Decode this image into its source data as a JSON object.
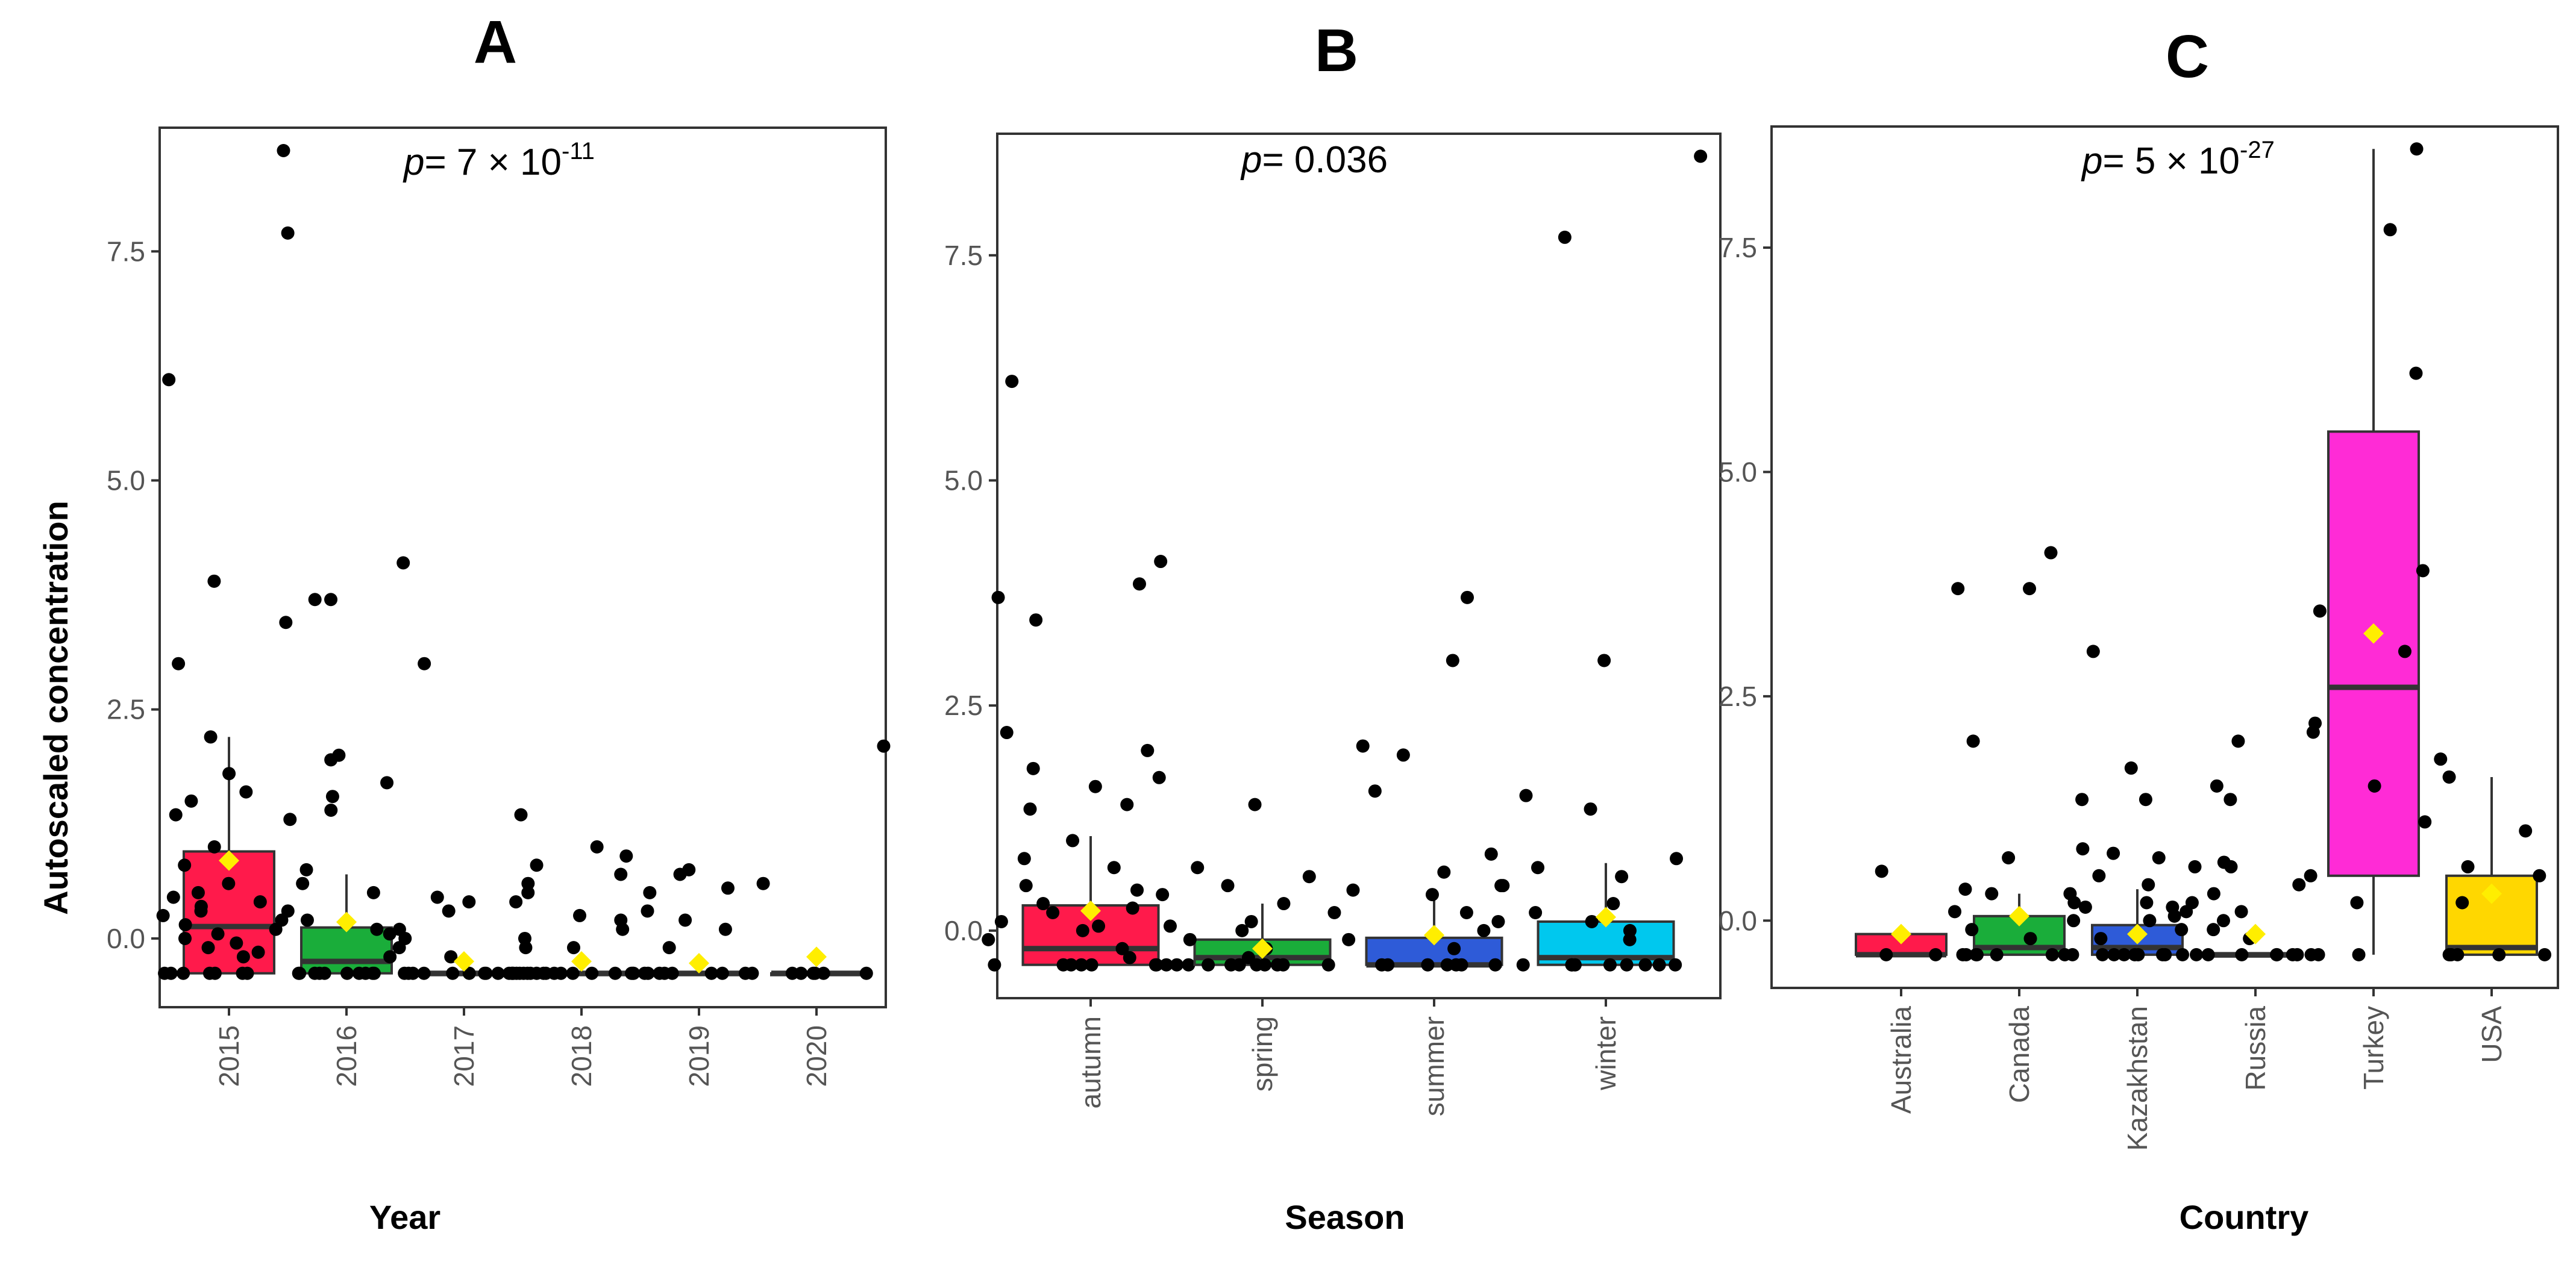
{
  "figure": {
    "ylabel": "Autoscaled concentration"
  },
  "chart_data": [
    {
      "type": "box",
      "panel": "A",
      "xlabel": "Year",
      "p_label": "p",
      "p_value_text": "= 7 × 10",
      "p_exponent": "-11",
      "ylim": [
        -0.75,
        8.85
      ],
      "yticks": [
        0.0,
        2.5,
        5.0,
        7.5
      ],
      "ytick_labels": [
        "0.0",
        "2.5",
        "5.0",
        "7.5"
      ],
      "categories": [
        "2015",
        "2016",
        "2017",
        "2018",
        "2019",
        "2020"
      ],
      "boxes": [
        {
          "q1": -0.38,
          "median": 0.13,
          "q3": 0.95,
          "whisker_low": -0.38,
          "whisker_high": 2.2,
          "mean": 0.85,
          "color": "#ff1a4b"
        },
        {
          "q1": -0.38,
          "median": -0.25,
          "q3": 0.12,
          "whisker_low": -0.38,
          "whisker_high": 0.7,
          "mean": 0.18,
          "color": "#1aad3a"
        },
        {
          "q1": -0.38,
          "median": -0.38,
          "q3": -0.38,
          "whisker_low": -0.38,
          "whisker_high": -0.38,
          "mean": -0.25,
          "color": "#2e5bd8"
        },
        {
          "q1": -0.38,
          "median": -0.38,
          "q3": -0.38,
          "whisker_low": -0.38,
          "whisker_high": -0.38,
          "mean": -0.25,
          "color": "#00c8ee"
        },
        {
          "q1": -0.38,
          "median": -0.38,
          "q3": -0.38,
          "whisker_low": -0.38,
          "whisker_high": -0.38,
          "mean": -0.27,
          "color": "#ff2bd6"
        },
        {
          "q1": -0.38,
          "median": -0.38,
          "q3": -0.38,
          "whisker_low": -0.38,
          "whisker_high": -0.38,
          "mean": -0.2,
          "color": "#ffd700"
        }
      ],
      "points": [
        [
          8.6,
          7.7,
          6.1,
          3.9,
          3.45,
          3.0,
          2.2,
          1.8,
          1.6,
          1.5,
          1.35,
          1.3,
          1.0,
          0.8,
          0.6,
          0.5,
          0.45,
          0.4,
          0.35,
          0.3,
          0.25,
          0.2,
          0.15,
          0.1,
          0.05,
          0.0,
          -0.05,
          -0.1,
          -0.15,
          -0.2,
          -0.38,
          -0.38,
          -0.38,
          -0.38,
          -0.38,
          -0.38,
          -0.38,
          -0.38
        ],
        [
          4.1,
          3.7,
          3.7,
          2.0,
          1.95,
          1.7,
          1.55,
          1.4,
          0.75,
          0.6,
          0.5,
          0.3,
          0.2,
          0.1,
          0.05,
          0.0,
          -0.1,
          -0.2,
          -0.38,
          -0.38,
          -0.38,
          -0.38,
          -0.38,
          -0.38,
          -0.38,
          -0.38,
          -0.38,
          -0.38
        ],
        [
          3.0,
          1.35,
          0.5,
          0.45,
          0.4,
          0.3,
          0.1,
          -0.1,
          -0.2,
          -0.38,
          -0.38,
          -0.38,
          -0.38,
          -0.38,
          -0.38,
          -0.38,
          -0.38,
          -0.38,
          -0.38,
          -0.38
        ],
        [
          1.0,
          0.9,
          0.8,
          0.7,
          0.6,
          0.5,
          0.4,
          0.3,
          0.25,
          0.2,
          0.1,
          0.0,
          -0.1,
          -0.38,
          -0.38,
          -0.38,
          -0.38,
          -0.38,
          -0.38,
          -0.38,
          -0.38,
          -0.38,
          -0.38,
          -0.38,
          -0.38,
          -0.38,
          -0.38,
          -0.38
        ],
        [
          0.75,
          0.7,
          0.6,
          0.55,
          0.2,
          0.1,
          -0.1,
          -0.38,
          -0.38,
          -0.38,
          -0.38,
          -0.38,
          -0.38,
          -0.38,
          -0.38,
          -0.38,
          -0.38,
          -0.38
        ],
        [
          2.1,
          -0.38,
          -0.38,
          -0.38,
          -0.38,
          -0.38,
          -0.38
        ]
      ]
    },
    {
      "type": "box",
      "panel": "B",
      "xlabel": "Season",
      "p_label": "p",
      "p_value_text": "= 0.036",
      "p_exponent": "",
      "ylim": [
        -0.75,
        8.85
      ],
      "yticks": [
        0.0,
        2.5,
        5.0,
        7.5
      ],
      "ytick_labels": [
        "0.0",
        "2.5",
        "5.0",
        "7.5"
      ],
      "categories": [
        "autumn",
        "spring",
        "summer",
        "winter"
      ],
      "boxes": [
        {
          "q1": -0.38,
          "median": -0.2,
          "q3": 0.28,
          "whisker_low": -0.38,
          "whisker_high": 1.05,
          "mean": 0.22,
          "color": "#ff1a4b"
        },
        {
          "q1": -0.38,
          "median": -0.3,
          "q3": -0.1,
          "whisker_low": -0.38,
          "whisker_high": 0.3,
          "mean": -0.2,
          "color": "#1aad3a"
        },
        {
          "q1": -0.38,
          "median": -0.38,
          "q3": -0.08,
          "whisker_low": -0.38,
          "whisker_high": 0.35,
          "mean": -0.05,
          "color": "#2e5bd8"
        },
        {
          "q1": -0.38,
          "median": -0.3,
          "q3": 0.1,
          "whisker_low": -0.38,
          "whisker_high": 0.75,
          "mean": 0.15,
          "color": "#00c8ee"
        }
      ],
      "points": [
        [
          6.1,
          4.1,
          3.85,
          3.7,
          3.45,
          2.2,
          2.0,
          1.8,
          1.6,
          1.4,
          1.35,
          1.0,
          0.8,
          0.7,
          0.5,
          0.45,
          0.4,
          0.3,
          0.25,
          0.2,
          0.1,
          0.05,
          0.0,
          -0.1,
          -0.2,
          -0.3,
          -0.38,
          -0.38,
          -0.38,
          -0.38,
          -0.38,
          -0.38,
          -0.38,
          -0.38
        ],
        [
          1.7,
          1.4,
          0.7,
          0.6,
          0.5,
          0.45,
          0.3,
          0.2,
          0.1,
          0.05,
          0.0,
          -0.1,
          -0.2,
          -0.3,
          -0.38,
          -0.38,
          -0.38,
          -0.38,
          -0.38,
          -0.38,
          -0.38,
          -0.38,
          -0.38,
          -0.38
        ],
        [
          3.7,
          3.0,
          2.05,
          1.95,
          1.55,
          0.85,
          0.65,
          0.5,
          0.4,
          0.2,
          0.1,
          0.0,
          -0.1,
          -0.2,
          -0.38,
          -0.38,
          -0.38,
          -0.38,
          -0.38,
          -0.38,
          -0.38,
          -0.38
        ],
        [
          8.6,
          7.7,
          3.0,
          1.5,
          1.35,
          0.8,
          0.7,
          0.6,
          0.5,
          0.3,
          0.2,
          0.1,
          0.0,
          -0.1,
          -0.38,
          -0.38,
          -0.38,
          -0.38,
          -0.38,
          -0.38,
          -0.38,
          -0.38
        ]
      ]
    },
    {
      "type": "box",
      "panel": "C",
      "xlabel": "Country",
      "p_label": "p",
      "p_value_text": "= 5 × 10",
      "p_exponent": "-27",
      "ylim": [
        -0.75,
        8.85
      ],
      "yticks": [
        0.0,
        2.5,
        5.0,
        7.5
      ],
      "ytick_labels": [
        "0.0",
        "2.5",
        "5.0",
        "7.5"
      ],
      "categories": [
        "Australia",
        "Canada",
        "Kazakhstan",
        "Russia",
        "Turkey",
        "USA"
      ],
      "boxes": [
        {
          "q1": -0.38,
          "median": -0.38,
          "q3": -0.15,
          "whisker_low": -0.38,
          "whisker_high": -0.15,
          "mean": -0.15,
          "color": "#ff1a4b"
        },
        {
          "q1": -0.38,
          "median": -0.3,
          "q3": 0.05,
          "whisker_low": -0.38,
          "whisker_high": 0.3,
          "mean": 0.05,
          "color": "#1aad3a"
        },
        {
          "q1": -0.38,
          "median": -0.3,
          "q3": -0.05,
          "whisker_low": -0.38,
          "whisker_high": 0.35,
          "mean": -0.15,
          "color": "#2e5bd8"
        },
        {
          "q1": -0.38,
          "median": -0.38,
          "q3": -0.38,
          "whisker_low": -0.38,
          "whisker_high": -0.38,
          "mean": -0.15,
          "color": "#00c8ee"
        },
        {
          "q1": 0.5,
          "median": 2.6,
          "q3": 5.45,
          "whisker_low": -0.38,
          "whisker_high": 8.6,
          "mean": 3.2,
          "color": "#ff2bd6"
        },
        {
          "q1": -0.38,
          "median": -0.3,
          "q3": 0.5,
          "whisker_low": -0.38,
          "whisker_high": 1.6,
          "mean": 0.3,
          "color": "#ffd700"
        }
      ],
      "points": [
        [
          0.55,
          -0.38,
          -0.38
        ],
        [
          4.1,
          3.7,
          3.7,
          2.0,
          0.8,
          0.7,
          0.35,
          0.3,
          0.2,
          0.15,
          0.1,
          0.0,
          -0.1,
          -0.2,
          -0.38,
          -0.38,
          -0.38,
          -0.38,
          -0.38,
          -0.38,
          -0.38,
          -0.38
        ],
        [
          3.0,
          1.7,
          1.35,
          1.35,
          0.75,
          0.7,
          0.6,
          0.5,
          0.4,
          0.3,
          0.2,
          0.15,
          0.1,
          0.05,
          0.0,
          -0.1,
          -0.2,
          -0.38,
          -0.38,
          -0.38,
          -0.38,
          -0.38,
          -0.38,
          -0.38,
          -0.38,
          -0.38
        ],
        [
          2.1,
          2.0,
          1.5,
          1.35,
          0.65,
          0.6,
          0.5,
          0.4,
          0.3,
          0.2,
          0.1,
          0.0,
          -0.1,
          -0.2,
          -0.38,
          -0.38,
          -0.38,
          -0.38,
          -0.38,
          -0.38,
          -0.38
        ],
        [
          8.6,
          7.7,
          6.1,
          3.45,
          3.0,
          2.2,
          1.5,
          0.2,
          -0.38,
          -0.38
        ],
        [
          3.9,
          1.8,
          1.6,
          1.1,
          1.0,
          0.6,
          0.5,
          0.2,
          -0.38,
          -0.38,
          -0.38,
          -0.38,
          -0.38
        ]
      ]
    }
  ]
}
